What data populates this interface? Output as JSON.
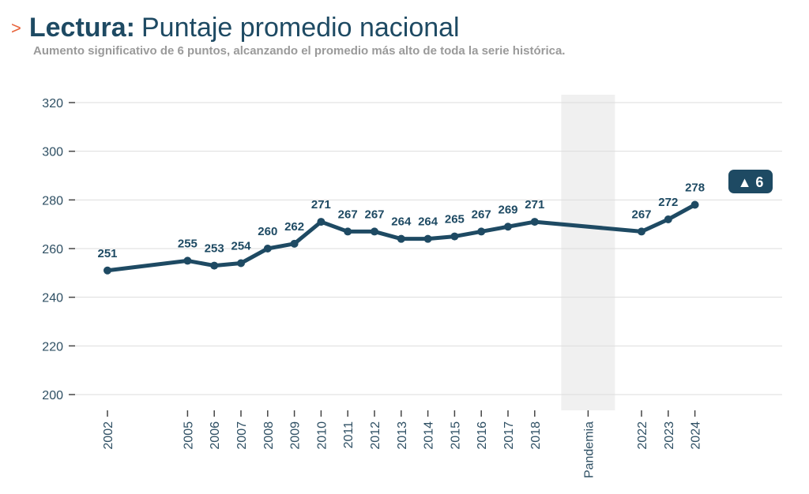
{
  "header": {
    "chevron": ">",
    "title_strong": "Lectura:",
    "title_rest": "Puntaje promedio nacional",
    "subtitle": "Aumento significativo de 6 puntos, alcanzando el promedio más alto de toda la serie histórica."
  },
  "colors": {
    "line": "#1e4a63",
    "accent": "#e8643c",
    "grid": "#dddddd",
    "pandemic_band": "#f0f0f0",
    "badge_bg": "#1e4a63"
  },
  "chart_data": {
    "type": "line",
    "title": "Lectura: Puntaje promedio nacional",
    "subtitle": "Aumento significativo de 6 puntos, alcanzando el promedio más alto de toda la serie histórica.",
    "xlabel": "",
    "ylabel": "",
    "ylim": [
      200,
      320
    ],
    "yticks": [
      200,
      220,
      240,
      260,
      280,
      300,
      320
    ],
    "grid": true,
    "x_categories": [
      "2002",
      "2005",
      "2006",
      "2007",
      "2008",
      "2009",
      "2010",
      "2011",
      "2012",
      "2013",
      "2014",
      "2015",
      "2016",
      "2017",
      "2018",
      "Pandemia",
      "2022",
      "2023",
      "2024"
    ],
    "x_gaps_before": [
      0,
      3,
      1,
      1,
      1,
      1,
      1,
      1,
      1,
      1,
      1,
      1,
      1,
      1,
      1,
      2,
      2,
      1,
      1
    ],
    "shaded_category": "Pandemia",
    "series": [
      {
        "values": [
          251,
          255,
          253,
          254,
          260,
          262,
          271,
          267,
          267,
          264,
          264,
          265,
          267,
          269,
          271,
          null,
          267,
          272,
          278
        ]
      }
    ],
    "badge": "▲ 6"
  }
}
